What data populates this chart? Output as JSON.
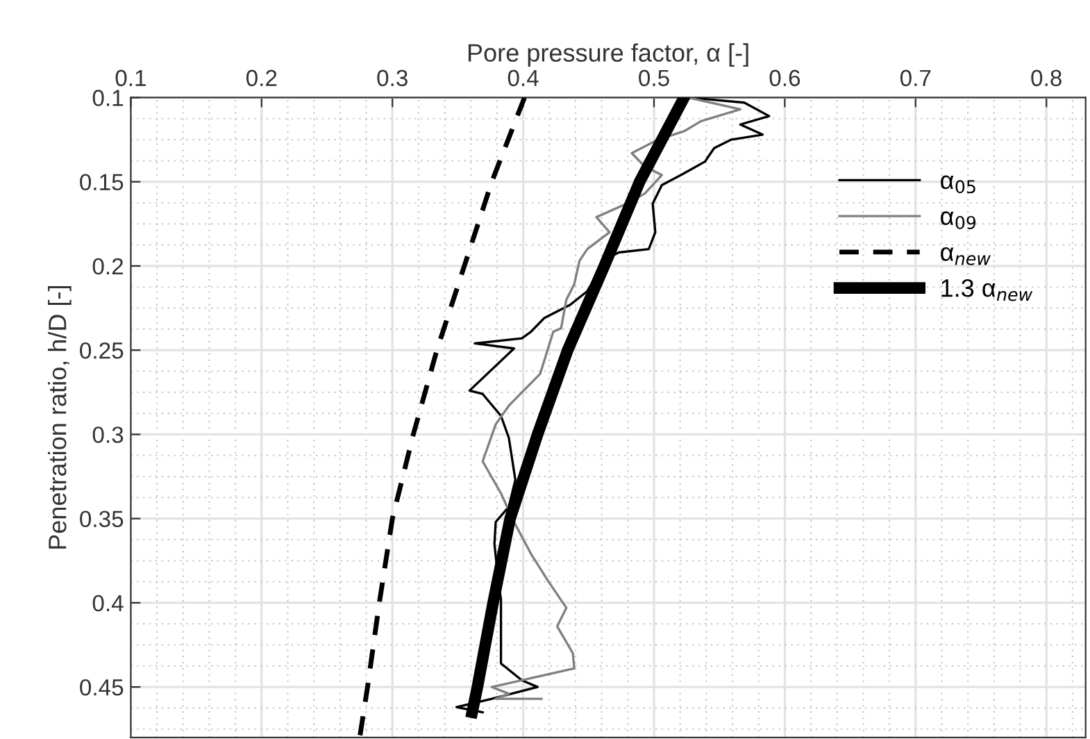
{
  "chart_data": {
    "type": "line",
    "xlabel": "Pore pressure factor, α [-]",
    "ylabel": "Penetration ratio, h/D [-]",
    "xlim": [
      0.1,
      0.83
    ],
    "xticks": [
      0.1,
      0.2,
      0.3,
      0.4,
      0.5,
      0.6,
      0.7,
      0.8
    ],
    "ylim": [
      0.48,
      0.1
    ],
    "yticks": [
      0.1,
      0.15,
      0.2,
      0.25,
      0.3,
      0.35,
      0.4,
      0.45
    ],
    "grid": true,
    "legend": "top right",
    "series": [
      {
        "name": "α$_{05}$",
        "color": "#000000",
        "line_style": "solid",
        "x": [
          0.526,
          0.569,
          0.588,
          0.566,
          0.583,
          0.559,
          0.546,
          0.539,
          0.523,
          0.506,
          0.499,
          0.501,
          0.496,
          0.473,
          0.463,
          0.449,
          0.436,
          0.416,
          0.406,
          0.399,
          0.363,
          0.393,
          0.359,
          0.369,
          0.383,
          0.389,
          0.394,
          0.389,
          0.379,
          0.378,
          0.381,
          0.383,
          0.383,
          0.399,
          0.411,
          0.376,
          0.349,
          0.369
        ],
        "values": [
          0.1,
          0.103,
          0.111,
          0.116,
          0.122,
          0.125,
          0.13,
          0.138,
          0.145,
          0.152,
          0.163,
          0.18,
          0.19,
          0.192,
          0.196,
          0.215,
          0.223,
          0.231,
          0.239,
          0.243,
          0.246,
          0.249,
          0.274,
          0.276,
          0.289,
          0.302,
          0.327,
          0.343,
          0.352,
          0.365,
          0.387,
          0.398,
          0.436,
          0.446,
          0.45,
          0.457,
          0.462,
          0.465
        ]
      },
      {
        "name": "α$_{09}$",
        "color": "#808080",
        "line_style": "solid",
        "x": [
          0.526,
          0.566,
          0.536,
          0.523,
          0.503,
          0.483,
          0.493,
          0.506,
          0.493,
          0.479,
          0.456,
          0.466,
          0.449,
          0.443,
          0.439,
          0.433,
          0.429,
          0.423,
          0.413,
          0.389,
          0.379,
          0.369,
          0.383,
          0.393,
          0.406,
          0.419,
          0.433,
          0.426,
          0.438,
          0.439,
          0.376,
          0.389,
          0.379,
          0.414
        ],
        "values": [
          0.1,
          0.107,
          0.114,
          0.12,
          0.125,
          0.133,
          0.141,
          0.146,
          0.157,
          0.163,
          0.171,
          0.18,
          0.19,
          0.197,
          0.211,
          0.22,
          0.237,
          0.239,
          0.264,
          0.283,
          0.294,
          0.316,
          0.335,
          0.352,
          0.371,
          0.387,
          0.403,
          0.414,
          0.43,
          0.439,
          0.45,
          0.454,
          0.457,
          0.457
        ]
      },
      {
        "name": "α$_{new}$",
        "color": "#000000",
        "line_style": "dashed",
        "x": [
          0.401,
          0.376,
          0.355,
          0.334,
          0.316,
          0.3,
          0.29,
          0.281,
          0.275
        ],
        "values": [
          0.1,
          0.15,
          0.2,
          0.25,
          0.3,
          0.35,
          0.4,
          0.45,
          0.48
        ]
      },
      {
        "name": "1.3 α$_{new}$",
        "color": "#000000",
        "line_style": "solid",
        "x": [
          0.523,
          0.489,
          0.462,
          0.434,
          0.411,
          0.39,
          0.377,
          0.365,
          0.361
        ],
        "values": [
          0.1,
          0.15,
          0.2,
          0.25,
          0.3,
          0.35,
          0.4,
          0.45,
          0.465
        ]
      }
    ]
  }
}
